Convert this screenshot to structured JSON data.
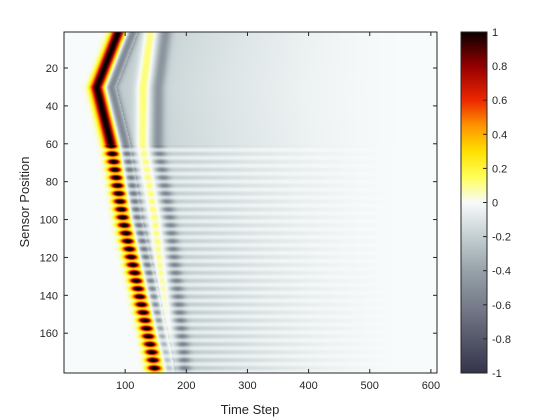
{
  "chart_data": {
    "type": "heatmap",
    "title": "",
    "xlabel": "Time Step",
    "ylabel": "Sensor Position",
    "xlim": [
      0,
      610
    ],
    "ylim": [
      1,
      181
    ],
    "y_reversed": true,
    "x_ticks": [
      100,
      200,
      300,
      400,
      500,
      600
    ],
    "x_tick_labels": [
      "100",
      "200",
      "300",
      "400",
      "500",
      "600"
    ],
    "y_ticks": [
      20,
      40,
      60,
      80,
      100,
      120,
      140,
      160
    ],
    "y_tick_labels": [
      "20",
      "40",
      "60",
      "80",
      "100",
      "120",
      "140",
      "160"
    ],
    "grid": false,
    "colormap": "diverging (black-red-yellow-white-gray-navy)",
    "clim": [
      -1,
      1
    ],
    "colorbar_ticks": [
      1,
      0.8,
      0.6,
      0.4,
      0.2,
      0,
      -0.2,
      -0.4,
      -0.6,
      -0.8,
      -1
    ],
    "colorbar_tick_labels": [
      "1",
      "0.8",
      "0.6",
      "0.4",
      "0.2",
      "0",
      "-0.2",
      "-0.4",
      "-0.6",
      "-0.8",
      "-1"
    ],
    "colorbar_placement": "right",
    "wave_front": {
      "description_points": [
        {
          "position": 1,
          "first_arrival": 80
        },
        {
          "position": 30,
          "first_arrival": 45
        },
        {
          "position": 60,
          "first_arrival": 68
        },
        {
          "position": 100,
          "first_arrival": 88
        },
        {
          "position": 140,
          "first_arrival": 115
        },
        {
          "position": 170,
          "first_arrival": 135
        },
        {
          "position": 180,
          "first_arrival": 140
        }
      ],
      "decay_end_time": 570,
      "banded_region_start_position": 60
    }
  }
}
